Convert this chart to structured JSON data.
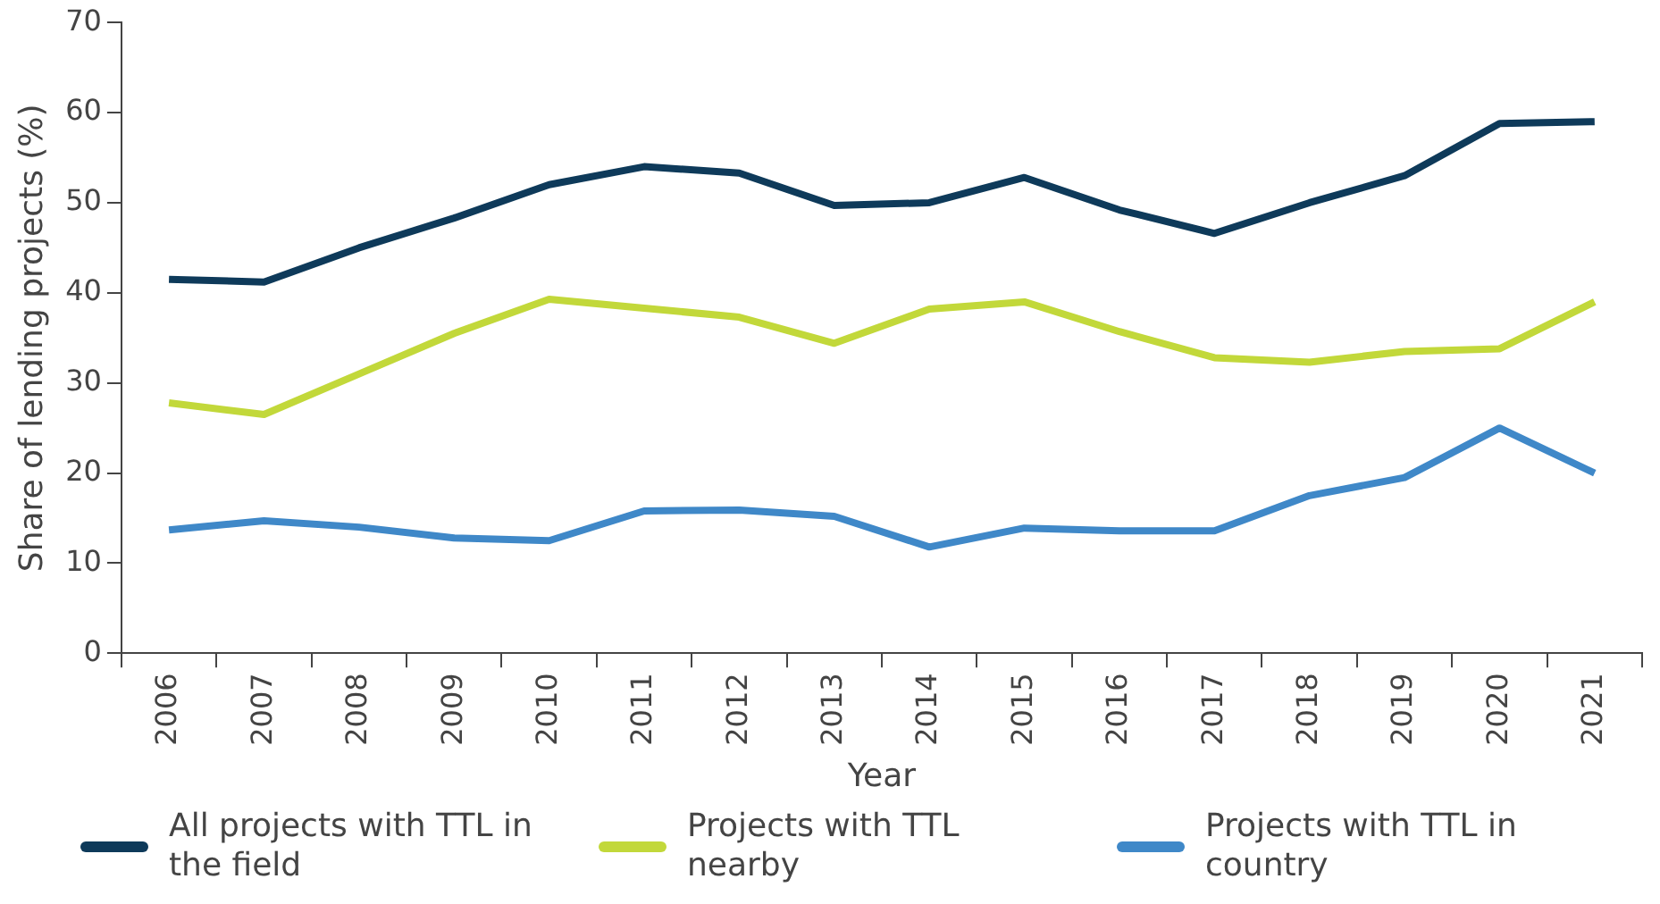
{
  "chart_data": {
    "type": "line",
    "xlabel": "Year",
    "ylabel": "Share of lending projects (%)",
    "categories": [
      "2006",
      "2007",
      "2008",
      "2009",
      "2010",
      "2011",
      "2012",
      "2013",
      "2014",
      "2015",
      "2016",
      "2017",
      "2018",
      "2019",
      "2020",
      "2021"
    ],
    "ylim": [
      0,
      70
    ],
    "yticks": [
      0,
      10,
      20,
      30,
      40,
      50,
      60,
      70
    ],
    "grid": false,
    "legend": "bottom",
    "marker": "none",
    "line_style": "solid",
    "series": [
      {
        "name": "All projects with TTL in the field",
        "color": "#0e3a5a",
        "values": [
          41.5,
          41.2,
          45,
          48.3,
          52,
          54,
          53.3,
          49.7,
          50,
          52.8,
          49.2,
          46.6,
          50,
          53,
          58.8,
          59
        ]
      },
      {
        "name": "Projects with TTL nearby",
        "color": "#c2d83a",
        "values": [
          27.8,
          26.5,
          31,
          35.5,
          39.3,
          38.3,
          37.3,
          34.4,
          38.2,
          39,
          35.7,
          32.8,
          32.3,
          33.5,
          33.8,
          39
        ]
      },
      {
        "name": "Projects with TTL in country",
        "color": "#3f88c8",
        "values": [
          13.7,
          14.7,
          14,
          12.8,
          12.5,
          15.8,
          15.9,
          15.2,
          11.8,
          13.9,
          13.6,
          13.6,
          17.5,
          19.5,
          25,
          20
        ]
      }
    ]
  }
}
